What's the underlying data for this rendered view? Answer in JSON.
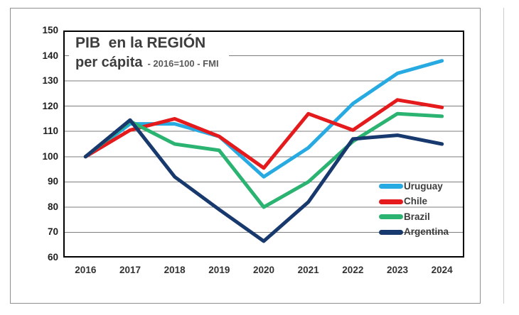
{
  "chart_data": {
    "type": "line",
    "title": {
      "line1": "PIB  en la REGIÓN",
      "line2_bold": "per cápita",
      "line2_note": "- 2016=100 - FMI"
    },
    "x_categories": [
      "2016",
      "2017",
      "2018",
      "2019",
      "2020",
      "2021",
      "2022",
      "2023",
      "2024"
    ],
    "y_ticks": [
      150,
      140,
      130,
      120,
      110,
      100,
      90,
      80,
      70,
      60
    ],
    "ylim": [
      60,
      150
    ],
    "grid": true,
    "legend": {
      "position": "inside-right",
      "entries": [
        "Uruguay",
        "Chile",
        "Brazil",
        "Argentina"
      ]
    },
    "series": [
      {
        "name": "Uruguay",
        "color": "#27AAE1",
        "values": [
          100,
          113,
          113,
          108,
          92,
          103.5,
          121,
          133,
          138
        ]
      },
      {
        "name": "Chile",
        "color": "#E41A1C",
        "values": [
          100,
          110.5,
          115,
          108,
          95.5,
          117,
          110.5,
          122.5,
          119.5
        ]
      },
      {
        "name": "Brazil",
        "color": "#2BB371",
        "values": [
          100,
          114,
          105,
          102.5,
          80,
          90,
          106,
          117,
          116
        ]
      },
      {
        "name": "Argentina",
        "color": "#18396D",
        "values": [
          100,
          114.5,
          92,
          79,
          66.5,
          82,
          107,
          108.5,
          105
        ]
      }
    ],
    "colors": {
      "gridline": "#7d7d7d",
      "plot_border": "#000000",
      "frame_border": "#8f8f8f"
    }
  }
}
